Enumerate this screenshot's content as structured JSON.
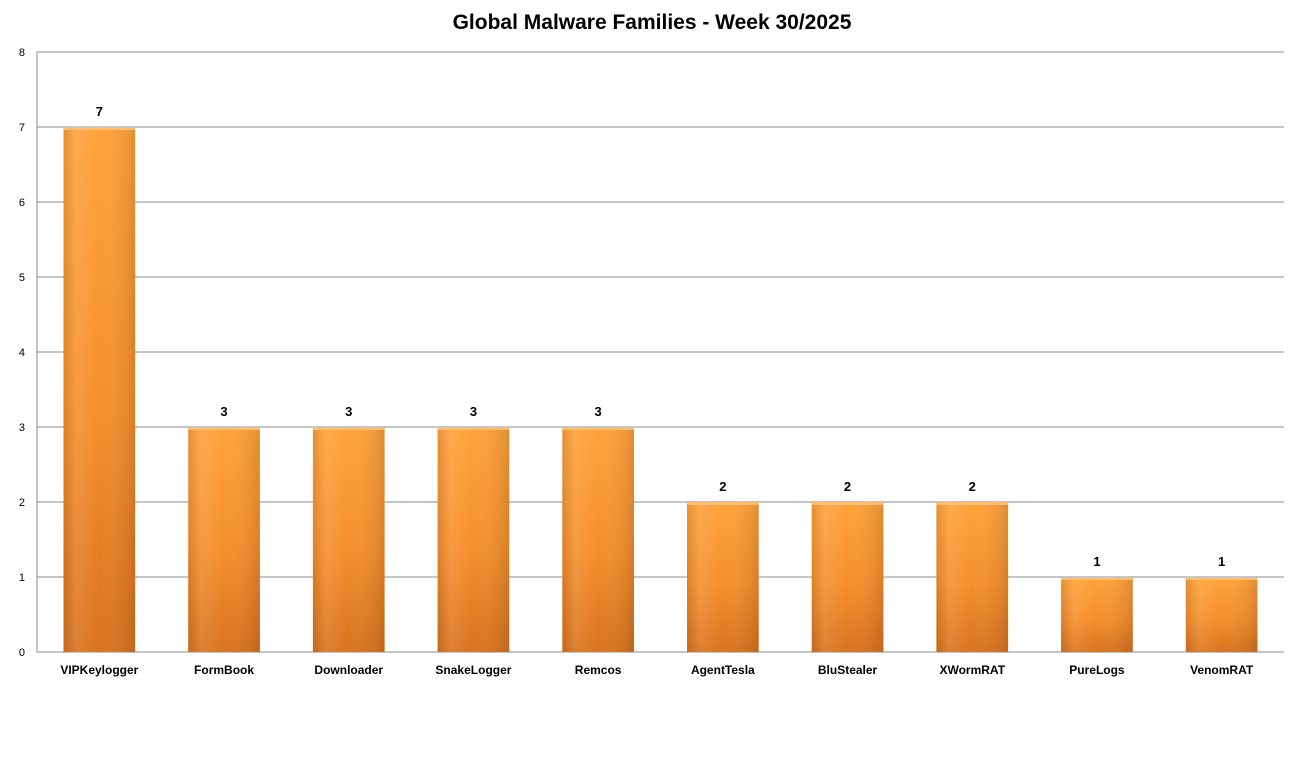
{
  "chart_data": {
    "type": "bar",
    "title": "Global Malware Families - Week 30/2025",
    "xlabel": "",
    "ylabel": "",
    "ylim": [
      0,
      8
    ],
    "yticks": [
      0,
      1,
      2,
      3,
      4,
      5,
      6,
      7,
      8
    ],
    "grid": true,
    "legend": "none",
    "bar_color": "#F7992F",
    "categories": [
      "VIPKeylogger",
      "FormBook",
      "Downloader",
      "SnakeLogger",
      "Remcos",
      "AgentTesla",
      "BluStealer",
      "XWormRAT",
      "PureLogs",
      "VenomRAT"
    ],
    "values": [
      7,
      3,
      3,
      3,
      3,
      2,
      2,
      2,
      1,
      1
    ]
  }
}
